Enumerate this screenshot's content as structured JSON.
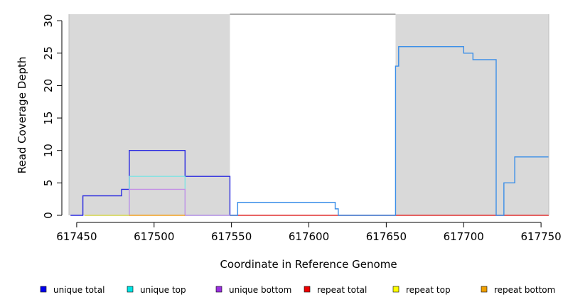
{
  "chart_data": {
    "type": "line",
    "title": "",
    "xlabel": "Coordinate in Reference Genome",
    "ylabel": "Read Coverage Depth",
    "xlim": [
      617445,
      617755
    ],
    "ylim": [
      0,
      31
    ],
    "x_ticks": [
      617450,
      617500,
      617550,
      617600,
      617650,
      617700,
      617750
    ],
    "y_ticks": [
      0,
      5,
      10,
      15,
      20,
      25,
      30
    ],
    "grid": false,
    "legend_position": "bottom",
    "shaded_regions": [
      {
        "x": [
          617445,
          617549
        ],
        "color": "#d9d9d9"
      },
      {
        "x": [
          617656,
          617755
        ],
        "color": "#d9d9d9"
      }
    ],
    "white_region_top": 31,
    "series": [
      {
        "name": "unique total",
        "color": "#2a2ae0",
        "legend_color": "#0000ee",
        "x": [
          617446,
          617454,
          617454,
          617479,
          617479,
          617484,
          617484,
          617520,
          617520,
          617549,
          617549
        ],
        "y": [
          0,
          0,
          3,
          3,
          4,
          4,
          10,
          10,
          6,
          6,
          0
        ]
      },
      {
        "name": "unique top",
        "color": "#7fe3e3",
        "legend_color": "#00e5e5",
        "x": [
          617455,
          617484,
          617484,
          617520,
          617520,
          617549
        ],
        "y": [
          0,
          0,
          6,
          6,
          0,
          0
        ]
      },
      {
        "name": "unique bottom",
        "color": "#c48fe6",
        "legend_color": "#9b30e0",
        "x": [
          617455,
          617484,
          617484,
          617520,
          617520,
          617549
        ],
        "y": [
          0,
          0,
          4,
          4,
          0,
          0
        ]
      },
      {
        "name": "repeat total",
        "color": "#e03030",
        "legend_color": "#ee0000",
        "x": [
          617549,
          617656,
          617656,
          617755
        ],
        "y": [
          0,
          0,
          0,
          0
        ]
      },
      {
        "name": "repeat top",
        "color": "#e5e54d",
        "legend_color": "#ffff00",
        "x": [
          617455,
          617484
        ],
        "y": [
          0,
          0
        ]
      },
      {
        "name": "repeat bottom",
        "color": "#f0a020",
        "legend_color": "#f0a000",
        "x": [
          617484,
          617520
        ],
        "y": [
          0,
          0
        ]
      },
      {
        "name": "",
        "color": "#3a8ee8",
        "legend_color": "",
        "x": [
          617549,
          617554,
          617554,
          617617,
          617617,
          617619,
          617619,
          617656,
          617656,
          617658,
          617658,
          617700,
          617700,
          617706,
          617706,
          617721,
          617721,
          617726,
          617726,
          617733,
          617733,
          617755
        ],
        "y": [
          0,
          0,
          2,
          2,
          1,
          1,
          0,
          0,
          23,
          23,
          26,
          26,
          25,
          25,
          24,
          24,
          0,
          0,
          5,
          5,
          9,
          9
        ]
      }
    ]
  }
}
